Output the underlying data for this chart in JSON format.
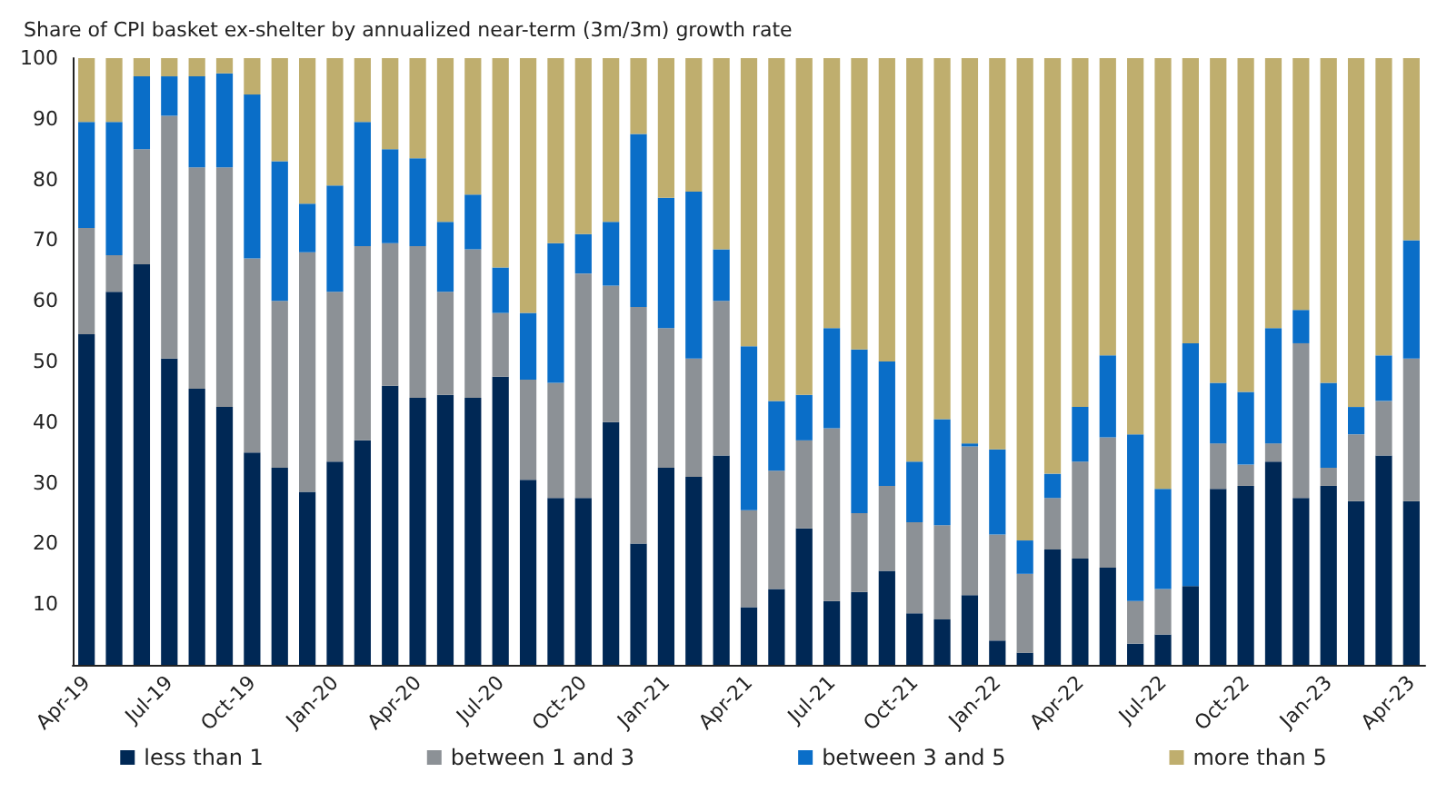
{
  "chart_data": {
    "type": "bar",
    "title": "Share of CPI basket ex-shelter by annualized near-term (3m/3m) growth rate",
    "stacked": true,
    "grid": false,
    "legend": "bottom",
    "categories": [
      "Apr-19",
      null,
      null,
      "Jul-19",
      null,
      null,
      "Oct-19",
      null,
      null,
      "Jan-20",
      null,
      null,
      "Apr-20",
      null,
      null,
      "Jul-20",
      null,
      null,
      "Oct-20",
      null,
      null,
      "Jan-21",
      null,
      null,
      "Apr-21",
      null,
      null,
      "Jul-21",
      null,
      null,
      "Oct-21",
      null,
      null,
      "Jan-22",
      null,
      null,
      "Apr-22",
      null,
      null,
      "Jul-22",
      null,
      null,
      "Oct-22",
      null,
      null,
      "Jan-23",
      null,
      null,
      "Apr-23"
    ],
    "ylim": [
      0,
      100
    ],
    "yticks": [
      10,
      20,
      30,
      40,
      50,
      60,
      70,
      80,
      90,
      100
    ],
    "series": [
      {
        "name": "less than 1",
        "color": "#002855",
        "values": [
          54.5,
          61.5,
          66,
          50.5,
          45.5,
          42.5,
          35,
          32.5,
          28.5,
          33.5,
          37,
          46,
          44,
          44.5,
          44,
          47.5,
          30.5,
          27.5,
          27.5,
          40,
          20,
          32.5,
          31,
          34.5,
          9.5,
          12.5,
          22.5,
          10.5,
          12,
          15.5,
          8.5,
          7.5,
          11.5,
          4,
          2,
          19,
          17.5,
          16,
          3.5,
          5,
          13,
          29,
          29.5,
          33.5,
          27.5,
          29.5,
          27,
          34.5,
          27
        ]
      },
      {
        "name": "between 1 and 3",
        "color": "#8c9196",
        "values": [
          17.5,
          6,
          19,
          40,
          36.5,
          39.5,
          32,
          27.5,
          39.5,
          28,
          32,
          23.5,
          25,
          17,
          24.5,
          10.5,
          16.5,
          19,
          37,
          22.5,
          39,
          23,
          19.5,
          25.5,
          16,
          19.5,
          14.5,
          28.5,
          13,
          14,
          15,
          15.5,
          24.5,
          17.5,
          13,
          8.5,
          16,
          21.5,
          7,
          7.5,
          0,
          7.5,
          3.5,
          3,
          25.5,
          3,
          11,
          9,
          23.5
        ]
      },
      {
        "name": "between 3 and 5",
        "color": "#0a6ec8",
        "values": [
          17.5,
          22,
          12,
          6.5,
          15,
          15.5,
          27,
          23,
          8,
          17.5,
          20.5,
          15.5,
          14.5,
          11.5,
          9,
          7.5,
          11,
          23,
          6.5,
          10.5,
          28.5,
          21.5,
          27.5,
          8.5,
          27,
          11.5,
          7.5,
          16.5,
          27,
          20.5,
          10,
          17.5,
          0.5,
          14,
          5.5,
          4,
          9,
          13.5,
          27.5,
          16.5,
          40,
          10,
          12,
          19,
          5.5,
          14,
          4.5,
          7.5,
          19.5
        ]
      },
      {
        "name": "more than 5",
        "color": "#bfae6e",
        "values": [
          10.5,
          10.5,
          3,
          3,
          3,
          2.5,
          6,
          17,
          24,
          21,
          10.5,
          15,
          16.5,
          27,
          22.5,
          34.5,
          42,
          30.5,
          29,
          27,
          12.5,
          23,
          22,
          31.5,
          47.5,
          56.5,
          55.5,
          44.5,
          48,
          50,
          66.5,
          59.5,
          63.5,
          64.5,
          79.5,
          68.5,
          57.5,
          49,
          62,
          71,
          47,
          53.5,
          55,
          44.5,
          41.5,
          53.5,
          57.5,
          49,
          30
        ]
      }
    ]
  }
}
